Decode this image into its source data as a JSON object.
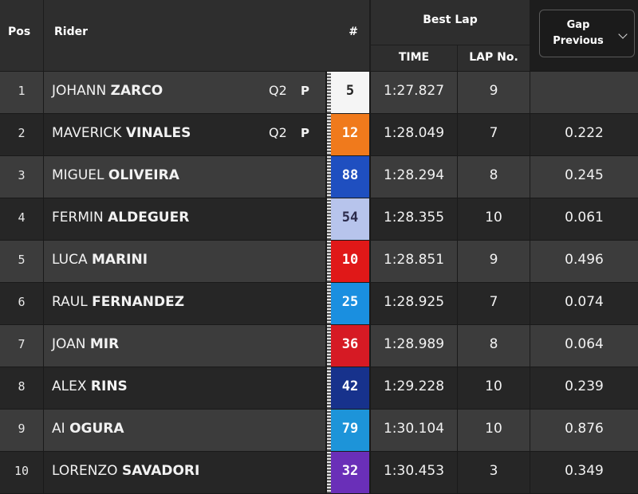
{
  "header": {
    "pos": "Pos",
    "rider": "Rider",
    "number": "#",
    "best_lap": "Best Lap",
    "time": "TIME",
    "lap_no": "LAP No.",
    "gap_line1": "Gap",
    "gap_line2": "Previous"
  },
  "rows": [
    {
      "pos": "1",
      "first": "JOHANN",
      "last": "ZARCO",
      "badge": "Q2",
      "flag": "P",
      "number": "5",
      "num_bg": "#f5f5f5",
      "num_fg": "#222222",
      "time": "1:27.827",
      "lap": "9",
      "gap": ""
    },
    {
      "pos": "2",
      "first": "MAVERICK",
      "last": "VINALES",
      "badge": "Q2",
      "flag": "P",
      "number": "12",
      "num_bg": "#f07a1c",
      "num_fg": "#ffffff",
      "time": "1:28.049",
      "lap": "7",
      "gap": "0.222"
    },
    {
      "pos": "3",
      "first": "MIGUEL",
      "last": "OLIVEIRA",
      "badge": "",
      "flag": "",
      "number": "88",
      "num_bg": "#1f4fc0",
      "num_fg": "#ffffff",
      "time": "1:28.294",
      "lap": "8",
      "gap": "0.245"
    },
    {
      "pos": "4",
      "first": "FERMIN",
      "last": "ALDEGUER",
      "badge": "",
      "flag": "",
      "number": "54",
      "num_bg": "#b7c4ec",
      "num_fg": "#2a2a4a",
      "time": "1:28.355",
      "lap": "10",
      "gap": "0.061"
    },
    {
      "pos": "5",
      "first": "LUCA",
      "last": "MARINI",
      "badge": "",
      "flag": "",
      "number": "10",
      "num_bg": "#e01818",
      "num_fg": "#ffffff",
      "time": "1:28.851",
      "lap": "9",
      "gap": "0.496"
    },
    {
      "pos": "6",
      "first": "RAUL",
      "last": "FERNANDEZ",
      "badge": "",
      "flag": "",
      "number": "25",
      "num_bg": "#1a8fe0",
      "num_fg": "#ffffff",
      "time": "1:28.925",
      "lap": "7",
      "gap": "0.074"
    },
    {
      "pos": "7",
      "first": "JOAN",
      "last": "MIR",
      "badge": "",
      "flag": "",
      "number": "36",
      "num_bg": "#d61a24",
      "num_fg": "#ffffff",
      "time": "1:28.989",
      "lap": "8",
      "gap": "0.064"
    },
    {
      "pos": "8",
      "first": "ALEX",
      "last": "RINS",
      "badge": "",
      "flag": "",
      "number": "42",
      "num_bg": "#17328c",
      "num_fg": "#ffffff",
      "time": "1:29.228",
      "lap": "10",
      "gap": "0.239"
    },
    {
      "pos": "9",
      "first": "AI",
      "last": "OGURA",
      "badge": "",
      "flag": "",
      "number": "79",
      "num_bg": "#1d94d9",
      "num_fg": "#ffffff",
      "time": "1:30.104",
      "lap": "10",
      "gap": "0.876"
    },
    {
      "pos": "10",
      "first": "LORENZO",
      "last": "SAVADORI",
      "badge": "",
      "flag": "",
      "number": "32",
      "num_bg": "#6a2fb8",
      "num_fg": "#ffffff",
      "time": "1:30.453",
      "lap": "3",
      "gap": "0.349"
    }
  ]
}
